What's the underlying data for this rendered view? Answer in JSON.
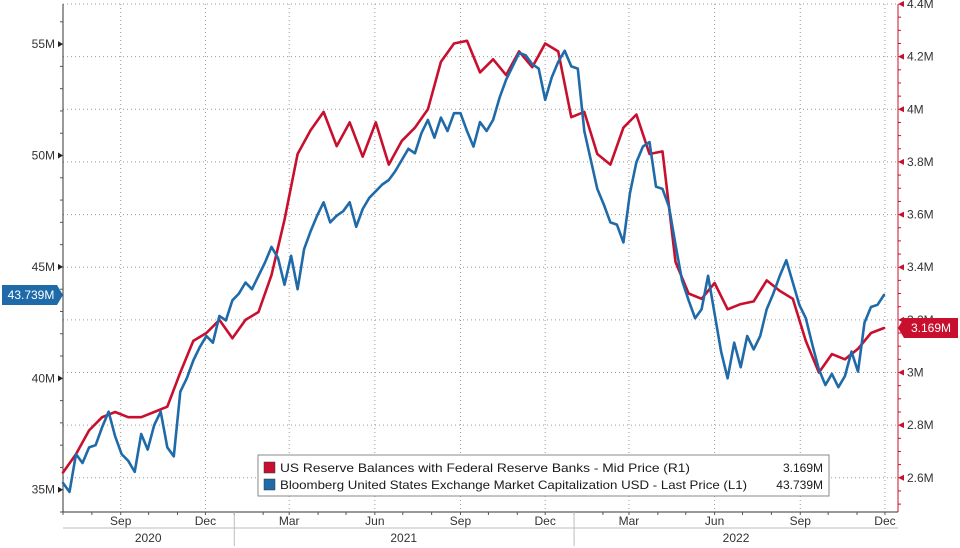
{
  "chart_data": {
    "type": "line",
    "x_ticks": [
      {
        "label": "Sep",
        "date": "2020-09-01"
      },
      {
        "label": "Dec",
        "date": "2020-12-01"
      },
      {
        "label": "Mar",
        "date": "2021-03-01"
      },
      {
        "label": "Jun",
        "date": "2021-06-01"
      },
      {
        "label": "Sep",
        "date": "2021-09-01"
      },
      {
        "label": "Dec",
        "date": "2021-12-01"
      },
      {
        "label": "Mar",
        "date": "2022-03-01"
      },
      {
        "label": "Jun",
        "date": "2022-06-01"
      },
      {
        "label": "Sep",
        "date": "2022-09-01"
      },
      {
        "label": "Dec",
        "date": "2022-12-01"
      }
    ],
    "years": [
      {
        "label": "2020",
        "start": "2020-07-01",
        "end": "2020-12-31"
      },
      {
        "label": "2021",
        "start": "2021-01-01",
        "end": "2021-12-31"
      },
      {
        "label": "2022",
        "start": "2022-01-01",
        "end": "2022-12-31"
      }
    ],
    "xlim": [
      "2020-07-01",
      "2022-12-15"
    ],
    "left_axis": {
      "ticks": [
        {
          "label": "35M",
          "value": 35
        },
        {
          "label": "40M",
          "value": 40
        },
        {
          "label": "45M",
          "value": 45
        },
        {
          "label": "50M",
          "value": 50
        },
        {
          "label": "55M",
          "value": 55
        }
      ],
      "ylim": [
        34,
        56.8
      ],
      "unit": "M"
    },
    "right_axis": {
      "ticks": [
        {
          "label": "2.6M",
          "value": 2.6
        },
        {
          "label": "2.8M",
          "value": 2.8
        },
        {
          "label": "3M",
          "value": 3.0
        },
        {
          "label": "3.2M",
          "value": 3.2
        },
        {
          "label": "3.4M",
          "value": 3.4
        },
        {
          "label": "3.6M",
          "value": 3.6
        },
        {
          "label": "3.8M",
          "value": 3.8
        },
        {
          "label": "4M",
          "value": 4.0
        },
        {
          "label": "4.2M",
          "value": 4.2
        },
        {
          "label": "4.4M",
          "value": 4.4
        }
      ],
      "ylim": [
        2.47,
        4.4
      ],
      "unit": "M"
    },
    "grid": true,
    "legend_placement": "bottom-right",
    "series": [
      {
        "name": "US Reserve Balances with Federal Reserve Banks - Mid Price (R1)",
        "last_value_label": "3.169M",
        "axis": "right",
        "color": "#c8102e",
        "points": [
          [
            "2020-07-01",
            2.62
          ],
          [
            "2020-07-15",
            2.69
          ],
          [
            "2020-07-29",
            2.78
          ],
          [
            "2020-08-12",
            2.83
          ],
          [
            "2020-08-26",
            2.85
          ],
          [
            "2020-09-09",
            2.83
          ],
          [
            "2020-09-23",
            2.83
          ],
          [
            "2020-10-07",
            2.85
          ],
          [
            "2020-10-21",
            2.87
          ],
          [
            "2020-11-04",
            3.0
          ],
          [
            "2020-11-18",
            3.12
          ],
          [
            "2020-12-02",
            3.15
          ],
          [
            "2020-12-16",
            3.2
          ],
          [
            "2020-12-30",
            3.13
          ],
          [
            "2021-01-13",
            3.2
          ],
          [
            "2021-01-27",
            3.23
          ],
          [
            "2021-02-10",
            3.37
          ],
          [
            "2021-02-24",
            3.58
          ],
          [
            "2021-03-10",
            3.83
          ],
          [
            "2021-03-24",
            3.92
          ],
          [
            "2021-04-07",
            3.99
          ],
          [
            "2021-04-21",
            3.86
          ],
          [
            "2021-05-05",
            3.95
          ],
          [
            "2021-05-19",
            3.82
          ],
          [
            "2021-06-02",
            3.95
          ],
          [
            "2021-06-16",
            3.79
          ],
          [
            "2021-06-30",
            3.88
          ],
          [
            "2021-07-14",
            3.93
          ],
          [
            "2021-07-28",
            4.0
          ],
          [
            "2021-08-11",
            4.18
          ],
          [
            "2021-08-25",
            4.25
          ],
          [
            "2021-09-08",
            4.26
          ],
          [
            "2021-09-22",
            4.14
          ],
          [
            "2021-10-06",
            4.19
          ],
          [
            "2021-10-20",
            4.13
          ],
          [
            "2021-11-03",
            4.22
          ],
          [
            "2021-11-17",
            4.16
          ],
          [
            "2021-12-01",
            4.25
          ],
          [
            "2021-12-15",
            4.22
          ],
          [
            "2021-12-29",
            3.97
          ],
          [
            "2022-01-12",
            3.99
          ],
          [
            "2022-01-26",
            3.83
          ],
          [
            "2022-02-09",
            3.79
          ],
          [
            "2022-02-23",
            3.93
          ],
          [
            "2022-03-09",
            3.98
          ],
          [
            "2022-03-23",
            3.83
          ],
          [
            "2022-04-06",
            3.84
          ],
          [
            "2022-04-20",
            3.42
          ],
          [
            "2022-05-04",
            3.3
          ],
          [
            "2022-05-18",
            3.28
          ],
          [
            "2022-06-01",
            3.34
          ],
          [
            "2022-06-15",
            3.24
          ],
          [
            "2022-06-29",
            3.26
          ],
          [
            "2022-07-13",
            3.27
          ],
          [
            "2022-07-27",
            3.35
          ],
          [
            "2022-08-10",
            3.31
          ],
          [
            "2022-08-24",
            3.28
          ],
          [
            "2022-09-07",
            3.12
          ],
          [
            "2022-09-21",
            3.0
          ],
          [
            "2022-10-05",
            3.07
          ],
          [
            "2022-10-19",
            3.05
          ],
          [
            "2022-11-02",
            3.09
          ],
          [
            "2022-11-16",
            3.15
          ],
          [
            "2022-11-30",
            3.169
          ]
        ]
      },
      {
        "name": "Bloomberg United States Exchange Market Capitalization USD - Last Price (L1)",
        "last_value_label": "43.739M",
        "axis": "left",
        "color": "#1f6aa8",
        "points": [
          [
            "2020-07-01",
            35.3
          ],
          [
            "2020-07-08",
            34.9
          ],
          [
            "2020-07-15",
            36.6
          ],
          [
            "2020-07-22",
            36.2
          ],
          [
            "2020-07-29",
            36.9
          ],
          [
            "2020-08-05",
            37.0
          ],
          [
            "2020-08-12",
            37.8
          ],
          [
            "2020-08-19",
            38.5
          ],
          [
            "2020-08-26",
            37.4
          ],
          [
            "2020-09-02",
            36.6
          ],
          [
            "2020-09-09",
            36.3
          ],
          [
            "2020-09-16",
            35.8
          ],
          [
            "2020-09-23",
            37.5
          ],
          [
            "2020-09-30",
            36.8
          ],
          [
            "2020-10-07",
            37.9
          ],
          [
            "2020-10-14",
            38.5
          ],
          [
            "2020-10-21",
            36.9
          ],
          [
            "2020-10-28",
            36.5
          ],
          [
            "2020-11-04",
            39.4
          ],
          [
            "2020-11-11",
            40.0
          ],
          [
            "2020-11-18",
            40.8
          ],
          [
            "2020-11-25",
            41.4
          ],
          [
            "2020-12-02",
            41.9
          ],
          [
            "2020-12-09",
            41.6
          ],
          [
            "2020-12-16",
            42.8
          ],
          [
            "2020-12-23",
            42.6
          ],
          [
            "2020-12-30",
            43.5
          ],
          [
            "2021-01-06",
            43.8
          ],
          [
            "2021-01-13",
            44.3
          ],
          [
            "2021-01-20",
            44.0
          ],
          [
            "2021-01-27",
            44.6
          ],
          [
            "2021-02-03",
            45.2
          ],
          [
            "2021-02-10",
            45.9
          ],
          [
            "2021-02-17",
            45.4
          ],
          [
            "2021-02-24",
            44.2
          ],
          [
            "2021-03-03",
            45.5
          ],
          [
            "2021-03-10",
            44.0
          ],
          [
            "2021-03-17",
            45.8
          ],
          [
            "2021-03-24",
            46.6
          ],
          [
            "2021-03-31",
            47.3
          ],
          [
            "2021-04-07",
            47.9
          ],
          [
            "2021-04-14",
            47.0
          ],
          [
            "2021-04-21",
            47.3
          ],
          [
            "2021-04-28",
            47.5
          ],
          [
            "2021-05-05",
            47.9
          ],
          [
            "2021-05-12",
            46.8
          ],
          [
            "2021-05-19",
            47.6
          ],
          [
            "2021-05-26",
            48.1
          ],
          [
            "2021-06-02",
            48.4
          ],
          [
            "2021-06-09",
            48.7
          ],
          [
            "2021-06-16",
            48.9
          ],
          [
            "2021-06-23",
            49.3
          ],
          [
            "2021-06-30",
            49.8
          ],
          [
            "2021-07-07",
            50.3
          ],
          [
            "2021-07-14",
            50.1
          ],
          [
            "2021-07-21",
            51.0
          ],
          [
            "2021-07-28",
            51.6
          ],
          [
            "2021-08-04",
            50.8
          ],
          [
            "2021-08-11",
            51.7
          ],
          [
            "2021-08-18",
            51.1
          ],
          [
            "2021-08-25",
            51.9
          ],
          [
            "2021-09-01",
            51.9
          ],
          [
            "2021-09-08",
            51.1
          ],
          [
            "2021-09-15",
            50.4
          ],
          [
            "2021-09-22",
            51.5
          ],
          [
            "2021-09-29",
            51.1
          ],
          [
            "2021-10-06",
            51.6
          ],
          [
            "2021-10-13",
            52.6
          ],
          [
            "2021-10-20",
            53.4
          ],
          [
            "2021-10-27",
            54.0
          ],
          [
            "2021-11-03",
            54.6
          ],
          [
            "2021-11-10",
            54.5
          ],
          [
            "2021-11-17",
            54.1
          ],
          [
            "2021-11-24",
            53.9
          ],
          [
            "2021-12-01",
            52.5
          ],
          [
            "2021-12-08",
            53.5
          ],
          [
            "2021-12-15",
            54.2
          ],
          [
            "2021-12-22",
            54.7
          ],
          [
            "2021-12-29",
            54.0
          ],
          [
            "2022-01-05",
            53.9
          ],
          [
            "2022-01-12",
            51.1
          ],
          [
            "2022-01-19",
            49.8
          ],
          [
            "2022-01-26",
            48.5
          ],
          [
            "2022-02-02",
            47.8
          ],
          [
            "2022-02-09",
            47.0
          ],
          [
            "2022-02-16",
            46.9
          ],
          [
            "2022-02-23",
            46.1
          ],
          [
            "2022-03-02",
            48.3
          ],
          [
            "2022-03-09",
            49.7
          ],
          [
            "2022-03-16",
            50.4
          ],
          [
            "2022-03-23",
            50.6
          ],
          [
            "2022-03-30",
            48.6
          ],
          [
            "2022-04-06",
            48.5
          ],
          [
            "2022-04-13",
            47.7
          ],
          [
            "2022-04-20",
            46.0
          ],
          [
            "2022-04-27",
            44.4
          ],
          [
            "2022-05-04",
            43.5
          ],
          [
            "2022-05-11",
            42.7
          ],
          [
            "2022-05-18",
            43.1
          ],
          [
            "2022-05-25",
            44.6
          ],
          [
            "2022-06-01",
            42.9
          ],
          [
            "2022-06-08",
            41.2
          ],
          [
            "2022-06-15",
            40.0
          ],
          [
            "2022-06-22",
            41.6
          ],
          [
            "2022-06-29",
            40.5
          ],
          [
            "2022-07-06",
            41.9
          ],
          [
            "2022-07-13",
            41.3
          ],
          [
            "2022-07-20",
            41.9
          ],
          [
            "2022-07-27",
            43.1
          ],
          [
            "2022-08-03",
            43.8
          ],
          [
            "2022-08-10",
            44.6
          ],
          [
            "2022-08-17",
            45.3
          ],
          [
            "2022-08-24",
            44.3
          ],
          [
            "2022-08-31",
            43.3
          ],
          [
            "2022-09-07",
            42.7
          ],
          [
            "2022-09-14",
            41.5
          ],
          [
            "2022-09-21",
            40.4
          ],
          [
            "2022-09-28",
            39.7
          ],
          [
            "2022-10-05",
            40.2
          ],
          [
            "2022-10-12",
            39.6
          ],
          [
            "2022-10-19",
            40.1
          ],
          [
            "2022-10-26",
            41.2
          ],
          [
            "2022-11-02",
            40.3
          ],
          [
            "2022-11-09",
            42.5
          ],
          [
            "2022-11-16",
            43.2
          ],
          [
            "2022-11-23",
            43.3
          ],
          [
            "2022-11-30",
            43.739
          ]
        ]
      }
    ]
  }
}
